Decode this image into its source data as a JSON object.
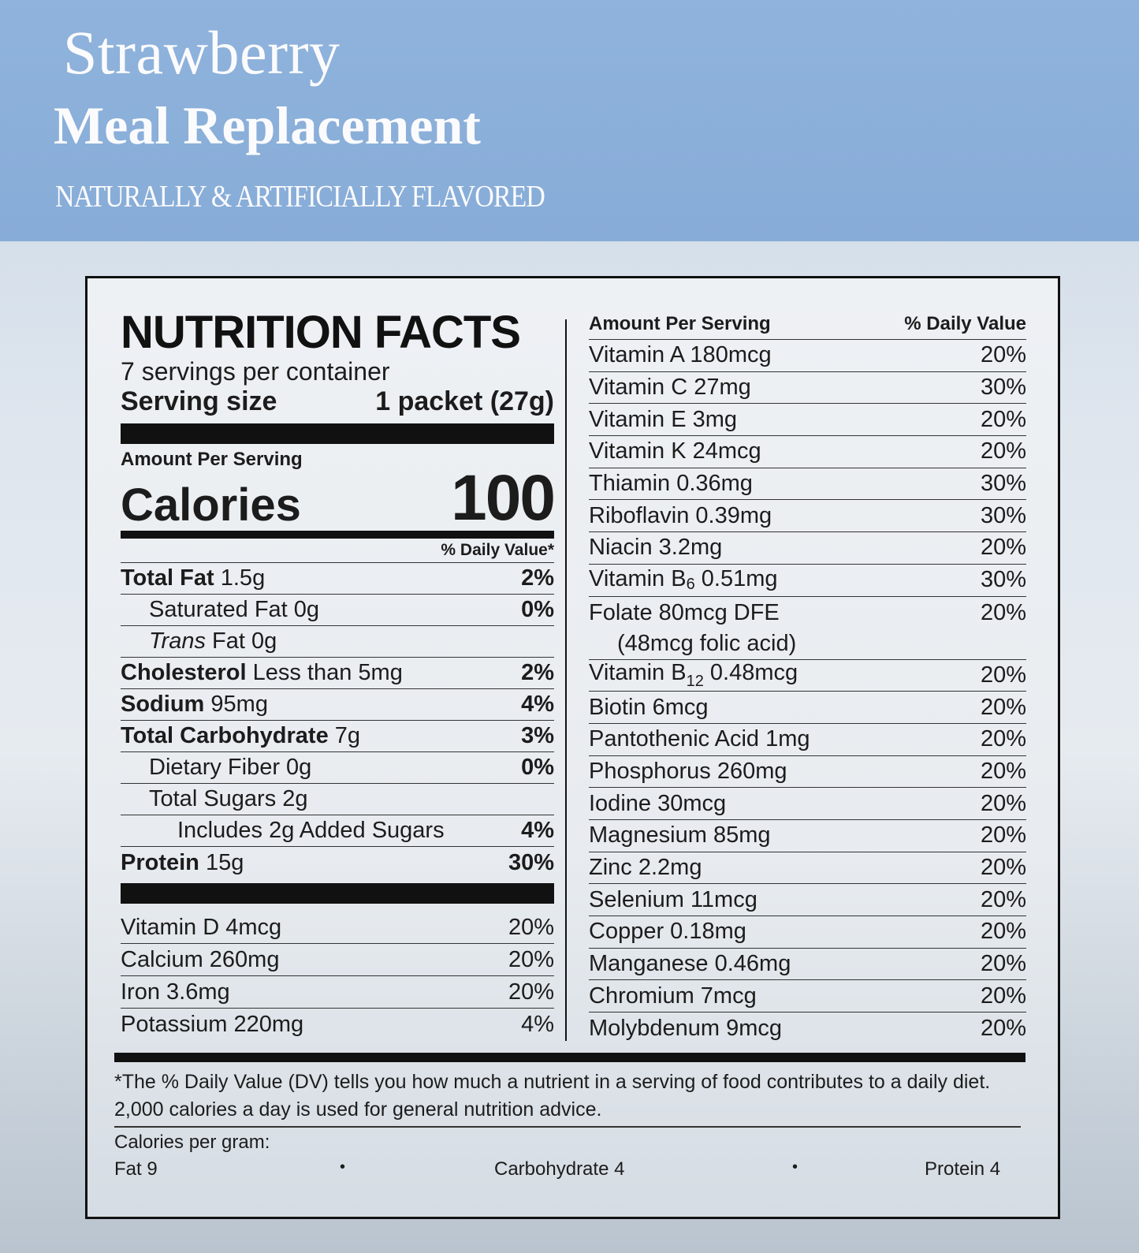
{
  "header": {
    "title_line1": "Strawberry",
    "title_line2": "Meal Replacement",
    "flavor_note": "NATURALLY & ARTIFICIALLY FLAVORED",
    "band_color": "#8fb3dc"
  },
  "facts": {
    "title": "NUTRITION FACTS",
    "servings": "7 servings per container",
    "serving_size_label": "Serving size",
    "serving_size_value": "1 packet (27g)",
    "amount_per_serving": "Amount Per Serving",
    "calories_label": "Calories",
    "calories_value": "100",
    "dv_header": "% Daily Value*",
    "rows": [
      {
        "name": "Total Fat",
        "amount": "1.5g",
        "dv": "2%"
      },
      {
        "name": "Saturated Fat 0g",
        "dv": "0%"
      },
      {
        "name_em": "Trans",
        "name_rest": " Fat 0g"
      },
      {
        "name": "Cholesterol",
        "amount": "Less than 5mg",
        "dv": "2%"
      },
      {
        "name": "Sodium",
        "amount": "95mg",
        "dv": "4%"
      },
      {
        "name": "Total Carbohydrate",
        "amount": "7g",
        "dv": "3%"
      },
      {
        "name": "Dietary Fiber 0g",
        "dv": "0%"
      },
      {
        "name": "Total Sugars 2g"
      },
      {
        "name": "Includes 2g Added Sugars",
        "dv": "4%"
      },
      {
        "name": "Protein",
        "amount": "15g",
        "dv": "30%"
      }
    ],
    "minerals": [
      {
        "name": "Vitamin D 4mcg",
        "dv": "20%"
      },
      {
        "name": "Calcium 260mg",
        "dv": "20%"
      },
      {
        "name": "Iron 3.6mg",
        "dv": "20%"
      },
      {
        "name": "Potassium 220mg",
        "dv": "4%"
      }
    ]
  },
  "right": {
    "head_left": "Amount Per Serving",
    "head_right": "% Daily Value",
    "rows": [
      {
        "name": "Vitamin A  180mcg",
        "dv": "20%"
      },
      {
        "name": "Vitamin C  27mg",
        "dv": "30%"
      },
      {
        "name": "Vitamin E  3mg",
        "dv": "20%"
      },
      {
        "name": "Vitamin K  24mcg",
        "dv": "20%"
      },
      {
        "name": "Thiamin  0.36mg",
        "dv": "30%"
      },
      {
        "name": "Riboflavin  0.39mg",
        "dv": "30%"
      },
      {
        "name": "Niacin  3.2mg",
        "dv": "20%"
      },
      {
        "pre": "Vitamin B",
        "sub": "6",
        "post": "  0.51mg",
        "dv": "30%"
      },
      {
        "name": "Folate  80mcg DFE",
        "note": "(48mcg folic acid)",
        "dv": "20%"
      },
      {
        "pre": "Vitamin B",
        "sub": "12",
        "post": "  0.48mcg",
        "dv": "20%"
      },
      {
        "name": "Biotin  6mcg",
        "dv": "20%"
      },
      {
        "name": "Pantothenic Acid  1mg",
        "dv": "20%"
      },
      {
        "name": "Phosphorus 260mg",
        "dv": "20%"
      },
      {
        "name": "Iodine  30mcg",
        "dv": "20%"
      },
      {
        "name": "Magnesium  85mg",
        "dv": "20%"
      },
      {
        "name": "Zinc  2.2mg",
        "dv": "20%"
      },
      {
        "name": "Selenium  11mcg",
        "dv": "20%"
      },
      {
        "name": "Copper  0.18mg",
        "dv": "20%"
      },
      {
        "name": "Manganese  0.46mg",
        "dv": "20%"
      },
      {
        "name": "Chromium  7mcg",
        "dv": "20%"
      },
      {
        "name": "Molybdenum  9mcg",
        "dv": "20%"
      }
    ]
  },
  "footer": {
    "footnote": "*The % Daily Value (DV) tells you how much a nutrient in a serving of food contributes to a daily diet. 2,000 calories a day is used for general nutrition advice.",
    "calories_per_gram": "Calories per gram:",
    "fat": "Fat 9",
    "carb": "Carbohydrate 4",
    "protein": "Protein 4",
    "bullet": "•"
  }
}
